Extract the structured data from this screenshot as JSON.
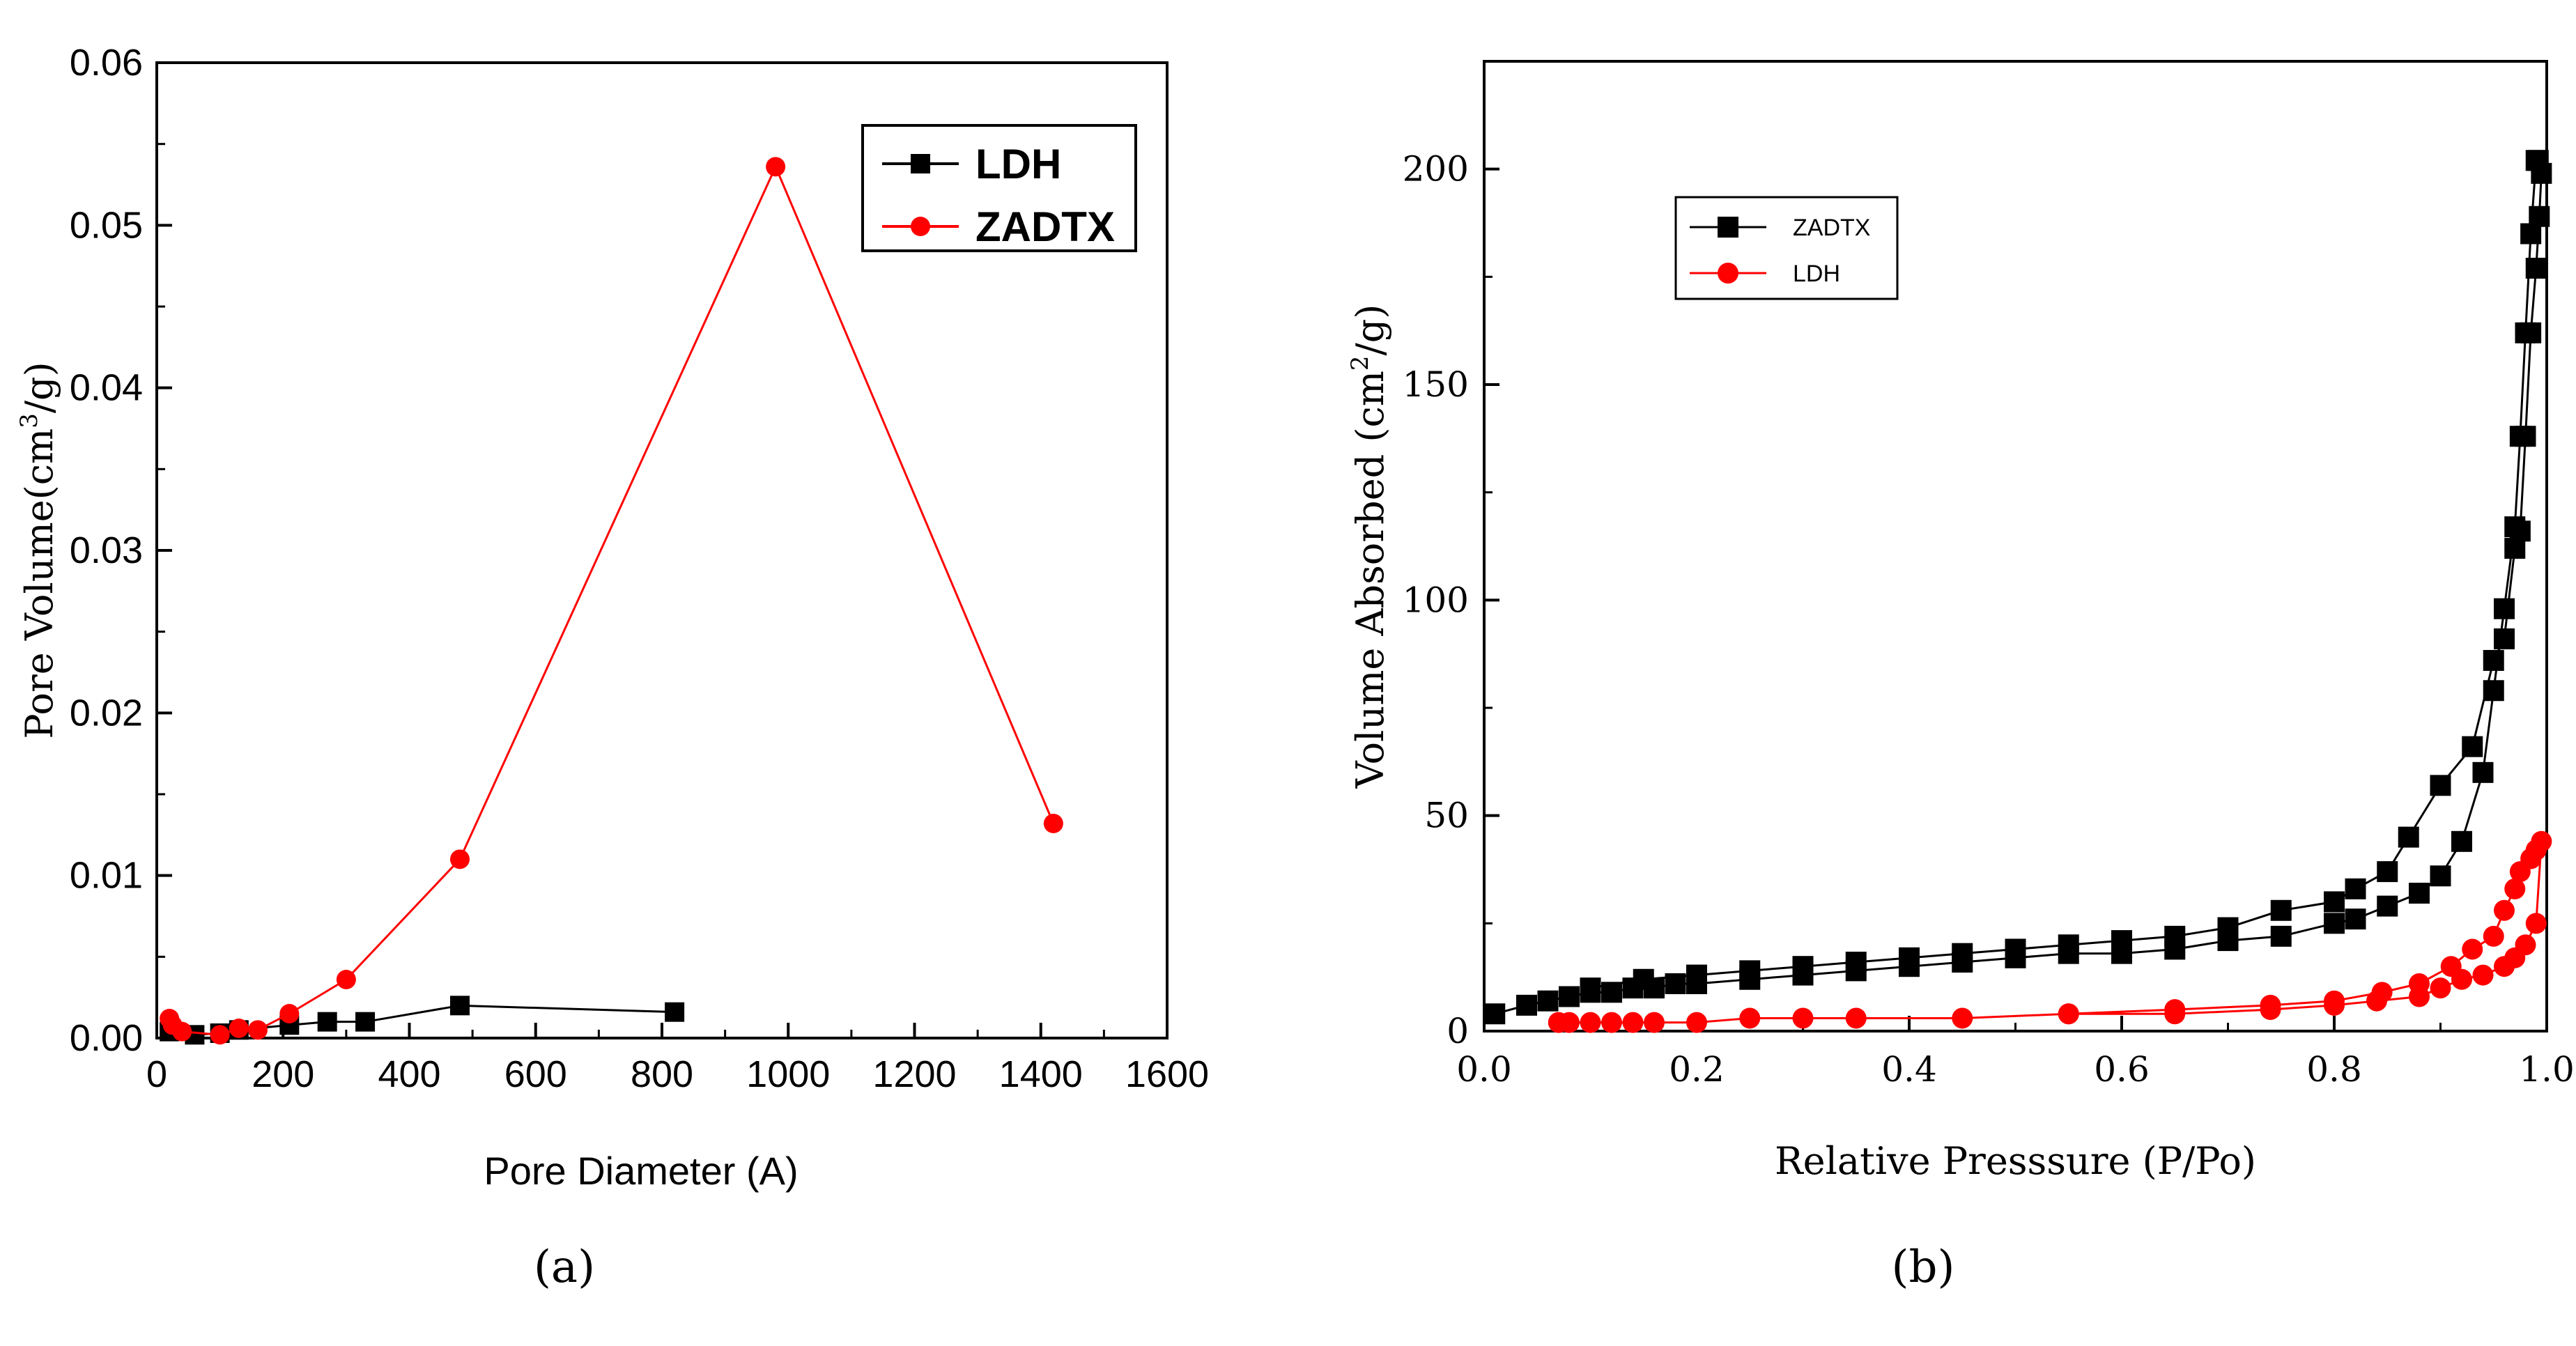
{
  "chart_data": [
    {
      "type": "line",
      "panel_label": "(a)",
      "title": "",
      "xlabel": "Pore Diameter (A)",
      "ylabel_prefix": "Pore Volume(cm",
      "ylabel_sup": "3",
      "ylabel_suffix": "/g)",
      "xlim": [
        0,
        1600
      ],
      "ylim": [
        0,
        0.06
      ],
      "xticks": [
        "0",
        "200",
        "400",
        "600",
        "800",
        "1000",
        "1200",
        "1400",
        "1600"
      ],
      "yticks": [
        "0.00",
        "0.01",
        "0.02",
        "0.03",
        "0.04",
        "0.05",
        "0.06"
      ],
      "legend_position": "top-right",
      "series": [
        {
          "name": "LDH",
          "color": "#000000",
          "marker": "square",
          "x": [
            20,
            60,
            100,
            130,
            210,
            270,
            330,
            480,
            820
          ],
          "y": [
            0.0004,
            0.0002,
            0.0003,
            0.0005,
            0.0008,
            0.001,
            0.001,
            0.002,
            0.0016
          ]
        },
        {
          "name": "ZADTX",
          "color": "#ff0000",
          "marker": "circle",
          "x": [
            20,
            25,
            40,
            100,
            130,
            160,
            210,
            300,
            480,
            980,
            1420
          ],
          "y": [
            0.0012,
            0.0008,
            0.0004,
            0.0002,
            0.0006,
            0.0005,
            0.0015,
            0.0036,
            0.011,
            0.0536,
            0.0132
          ]
        }
      ]
    },
    {
      "type": "scatter",
      "panel_label": "(b)",
      "title": "",
      "xlabel": "Relative Presssure (P/Po)",
      "ylabel_prefix": "Volume Absorbed (cm",
      "ylabel_sup": "2",
      "ylabel_suffix": "/g)",
      "xlim": [
        0,
        1.0
      ],
      "ylim": [
        0,
        225
      ],
      "xticks": [
        "0.0",
        "0.2",
        "0.4",
        "0.6",
        "0.8",
        "1.0"
      ],
      "yticks": [
        "0",
        "50",
        "100",
        "150",
        "200"
      ],
      "legend_position": "top-left",
      "series": [
        {
          "name": "ZADTX",
          "color": "#000000",
          "marker": "square",
          "x": [
            0.01,
            0.04,
            0.06,
            0.08,
            0.1,
            0.12,
            0.14,
            0.16,
            0.18,
            0.2,
            0.25,
            0.3,
            0.35,
            0.4,
            0.45,
            0.5,
            0.55,
            0.6,
            0.65,
            0.7,
            0.75,
            0.8,
            0.82,
            0.85,
            0.88,
            0.9,
            0.92,
            0.94,
            0.95,
            0.96,
            0.97,
            0.975,
            0.98,
            0.985,
            0.99,
            0.992,
            0.995,
            0.993,
            0.99,
            0.985,
            0.98,
            0.975,
            0.97,
            0.96,
            0.95,
            0.93,
            0.9,
            0.87,
            0.85,
            0.82,
            0.8,
            0.75,
            0.7,
            0.65,
            0.6,
            0.55,
            0.5,
            0.45,
            0.4,
            0.35,
            0.3,
            0.25,
            0.2,
            0.15,
            0.1
          ],
          "y": [
            4,
            6,
            7,
            8,
            9,
            9,
            10,
            10,
            11,
            11,
            12,
            13,
            14,
            15,
            16,
            17,
            18,
            18,
            19,
            21,
            22,
            25,
            26,
            29,
            32,
            36,
            44,
            60,
            79,
            98,
            117,
            138,
            162,
            185,
            202,
            202,
            199,
            189,
            177,
            162,
            138,
            116,
            112,
            91,
            86,
            66,
            57,
            45,
            37,
            33,
            30,
            28,
            24,
            22,
            21,
            20,
            19,
            18,
            17,
            16,
            15,
            14,
            13,
            12,
            10
          ]
        },
        {
          "name": "LDH",
          "color": "#ff0000",
          "marker": "circle",
          "x": [
            0.07,
            0.08,
            0.1,
            0.12,
            0.14,
            0.16,
            0.2,
            0.25,
            0.3,
            0.35,
            0.45,
            0.55,
            0.65,
            0.74,
            0.8,
            0.84,
            0.88,
            0.9,
            0.92,
            0.94,
            0.96,
            0.97,
            0.98,
            0.99,
            0.995,
            0.99,
            0.985,
            0.975,
            0.97,
            0.96,
            0.95,
            0.93,
            0.91,
            0.88,
            0.845,
            0.8,
            0.74,
            0.65,
            0.55
          ],
          "y": [
            2,
            2,
            2,
            2,
            2,
            2,
            2,
            3,
            3,
            3,
            3,
            4,
            4,
            5,
            6,
            7,
            8,
            10,
            12,
            13,
            15,
            17,
            20,
            25,
            44,
            42,
            40,
            37,
            33,
            28,
            22,
            19,
            15,
            11,
            9,
            7,
            6,
            5,
            4
          ]
        }
      ]
    }
  ]
}
